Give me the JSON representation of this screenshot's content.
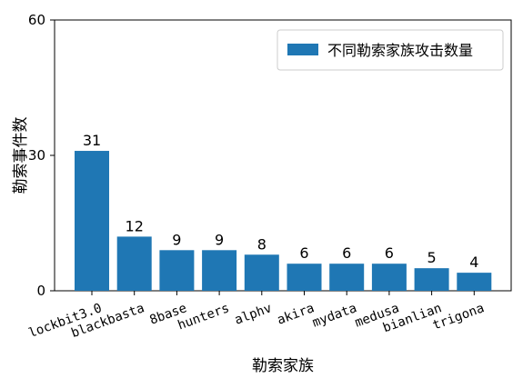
{
  "chart_data": {
    "type": "bar",
    "categories": [
      "lockbit3.0",
      "blackbasta",
      "8base",
      "hunters",
      "alphv",
      "akira",
      "mydata",
      "medusa",
      "bianlian",
      "trigona"
    ],
    "series": [
      {
        "name": "不同勒索家族攻击数量",
        "values": [
          31,
          12,
          9,
          9,
          8,
          6,
          6,
          6,
          5,
          4
        ]
      }
    ],
    "xlabel": "勒索家族",
    "ylabel": "勒索事件数",
    "ylim": [
      0,
      60
    ],
    "yticks": [
      "0",
      "30",
      "60"
    ],
    "grid": false,
    "legend": "top-right",
    "bar_color": "#1f77b4"
  }
}
